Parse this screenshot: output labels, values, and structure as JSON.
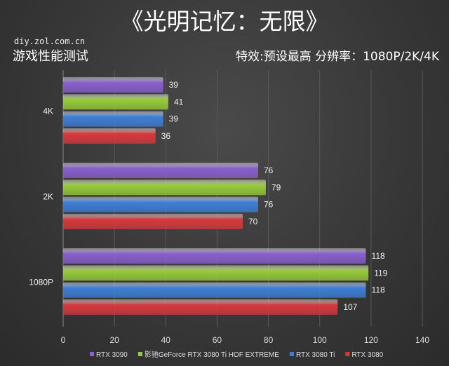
{
  "chart_data": {
    "type": "bar",
    "orientation": "horizontal",
    "title": "《光明记忆：无限》",
    "subtitle": "游戏性能测试",
    "source": "diy.zol.com.cn",
    "settings": "特效:预设最高  分辨率：1080P/2K/4K",
    "categories": [
      "4K",
      "2K",
      "1080P"
    ],
    "series": [
      {
        "name": "RTX 3090",
        "color": "#8a5fd0",
        "values": [
          39,
          76,
          118
        ]
      },
      {
        "name": "影驰GeForce RTX 3080 Ti HOF EXTREME",
        "color": "#97cc3a",
        "values": [
          41,
          79,
          119
        ]
      },
      {
        "name": "RTX 3080 Ti",
        "color": "#3d7fd8",
        "values": [
          39,
          76,
          118
        ]
      },
      {
        "name": "RTX 3080",
        "color": "#d8383c",
        "values": [
          36,
          70,
          107
        ]
      }
    ],
    "xlim": [
      0,
      140
    ],
    "xticks": [
      0,
      20,
      40,
      60,
      80,
      100,
      120,
      140
    ],
    "grid": true,
    "legend": "bottom"
  }
}
